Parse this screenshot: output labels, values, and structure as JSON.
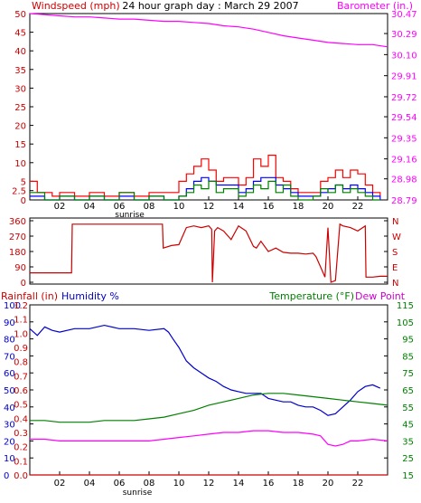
{
  "chart_data": [
    {
      "type": "line",
      "title": "24 hour graph day : March 29 2007",
      "left_axis_label": "Windspeed (mph)",
      "right_axis_label": "Barometer (in.)",
      "x_tick_labels": [
        "02",
        "04",
        "06",
        "08",
        "10",
        "12",
        "14",
        "16",
        "18",
        "20",
        "22"
      ],
      "x_range_hours": [
        0,
        24
      ],
      "annotation": "sunrise",
      "annotation_hour": 6.7,
      "left_ylim": [
        0,
        50
      ],
      "left_ticks": [
        "0",
        "2.5",
        "5",
        "10",
        "15",
        "20",
        "25",
        "30",
        "35",
        "40",
        "45",
        "50"
      ],
      "right_ylim": [
        28.79,
        30.47
      ],
      "right_ticks": [
        "28.79",
        "28.98",
        "29.16",
        "29.35",
        "29.54",
        "29.72",
        "29.91",
        "30.10",
        "30.29",
        "30.47"
      ],
      "grid": false,
      "colors": {
        "gust": "#ff0000",
        "wind_avg": "#0000ff",
        "wind_avg2": "#008000",
        "barometer": "#ff00ff"
      },
      "series": [
        {
          "role": "barometer",
          "axis": "right",
          "color": "#ff00ff",
          "x": [
            0,
            1,
            2,
            3,
            4,
            5,
            6,
            7,
            8,
            9,
            10,
            11,
            12,
            13,
            14,
            15,
            16,
            17,
            18,
            19,
            20,
            21,
            22,
            23,
            24
          ],
          "values": [
            30.47,
            30.46,
            30.45,
            30.44,
            30.44,
            30.43,
            30.42,
            30.42,
            30.41,
            30.4,
            30.4,
            30.39,
            30.38,
            30.36,
            30.35,
            30.33,
            30.3,
            30.27,
            30.25,
            30.23,
            30.21,
            30.2,
            30.19,
            30.19,
            30.17
          ]
        },
        {
          "role": "gust",
          "axis": "left",
          "color": "#ff0000",
          "x": [
            0,
            0.5,
            1,
            1.5,
            2,
            3,
            4,
            5,
            6,
            7,
            8,
            9,
            10,
            10.5,
            11,
            11.5,
            12,
            12.5,
            13,
            14,
            14.5,
            15,
            15.5,
            16,
            16.5,
            17,
            17.5,
            18,
            19,
            19.5,
            20,
            20.5,
            21,
            21.5,
            22,
            22.5,
            23,
            23.5
          ],
          "values": [
            5,
            2,
            2,
            1,
            2,
            1,
            2,
            1,
            2,
            1,
            2,
            2,
            5,
            7,
            9,
            11,
            8,
            5,
            6,
            4,
            6,
            11,
            9,
            12,
            6,
            5,
            3,
            2,
            2,
            5,
            6,
            8,
            6,
            8,
            7,
            4,
            2,
            1
          ]
        },
        {
          "role": "wind-avg",
          "axis": "left",
          "color": "#0000ff",
          "x": [
            0,
            1,
            2,
            3,
            4,
            5,
            6,
            7,
            8,
            9,
            10,
            10.5,
            11,
            11.5,
            12,
            12.5,
            13,
            14,
            14.5,
            15,
            15.5,
            16,
            16.5,
            17,
            17.5,
            18,
            19,
            19.5,
            20,
            20.5,
            21,
            21.5,
            22,
            22.5,
            23,
            23.5
          ],
          "values": [
            1,
            0,
            1,
            0,
            1,
            0,
            1,
            0,
            1,
            0,
            1,
            3,
            5,
            6,
            5,
            4,
            4,
            2,
            3,
            5,
            6,
            6,
            4,
            3,
            2,
            1,
            1,
            2,
            3,
            4,
            3,
            4,
            3,
            2,
            1,
            0
          ]
        },
        {
          "role": "wind-avg-2",
          "axis": "left",
          "color": "#008000",
          "x": [
            0,
            1,
            2,
            3,
            4,
            5,
            6,
            7,
            8,
            9,
            10,
            10.5,
            11,
            11.5,
            12,
            12.5,
            13,
            14,
            14.5,
            15,
            15.5,
            16,
            16.5,
            17,
            17.5,
            18,
            19,
            19.5,
            20,
            20.5,
            21,
            21.5,
            22,
            22.5,
            23,
            23.5
          ],
          "values": [
            2,
            0,
            1,
            0,
            1,
            0,
            2,
            0,
            1,
            0,
            1,
            2,
            4,
            3,
            5,
            2,
            3,
            1,
            2,
            4,
            3,
            5,
            2,
            4,
            1,
            0,
            1,
            3,
            2,
            4,
            2,
            3,
            2,
            1,
            0,
            0
          ]
        }
      ]
    },
    {
      "type": "line",
      "title": "",
      "left_ticks": [
        "0",
        "90",
        "180",
        "270",
        "360"
      ],
      "left_ylim": [
        0,
        360
      ],
      "right_ticks": [
        "N",
        "W",
        "S",
        "E",
        "N"
      ],
      "x_range_hours": [
        0,
        24
      ],
      "color": "#cc0000",
      "series": [
        {
          "role": "wind-direction",
          "axis": "left",
          "x": [
            0,
            1,
            2,
            2.8,
            2.85,
            3,
            4,
            5,
            6,
            7,
            8,
            8.9,
            8.95,
            9.5,
            10,
            10.5,
            11,
            11.5,
            12,
            12.2,
            12.25,
            12.4,
            12.6,
            13,
            13.5,
            14,
            14.5,
            15,
            15.2,
            15.5,
            16,
            16.5,
            17,
            17.5,
            18,
            18.5,
            19,
            19.2,
            19.5,
            19.8,
            20,
            20.2,
            20.5,
            20.8,
            21,
            21.5,
            22,
            22.5,
            22.55,
            23,
            23.5,
            24
          ],
          "values": [
            55,
            55,
            55,
            55,
            340,
            340,
            340,
            340,
            340,
            340,
            340,
            340,
            200,
            215,
            220,
            320,
            330,
            320,
            330,
            310,
            0,
            300,
            320,
            300,
            250,
            330,
            300,
            210,
            200,
            240,
            180,
            200,
            175,
            170,
            170,
            165,
            170,
            150,
            90,
            30,
            320,
            0,
            10,
            340,
            330,
            320,
            300,
            330,
            30,
            30,
            35,
            35
          ]
        }
      ]
    },
    {
      "type": "line",
      "title": "",
      "left_axis_label_rain": "Rainfall (in)",
      "left_axis_label_humidity": "Humidity %",
      "right_axis_label_temp": "Temperature (°F)",
      "right_axis_label_dew": "Dew Point",
      "x_tick_labels": [
        "02",
        "04",
        "06",
        "08",
        "10",
        "12",
        "14",
        "16",
        "18",
        "20",
        "22"
      ],
      "x_range_hours": [
        0,
        24
      ],
      "annotation": "sunrise",
      "annotation_hour": 6.7,
      "rain_ticks": [
        "0.0",
        "0.1",
        "0.2",
        "0.3",
        "0.4",
        "0.5",
        "0.6",
        "0.7",
        "0.8",
        "0.9",
        "1.0",
        "1.1",
        "1.2"
      ],
      "humidity_ticks": [
        "0",
        "10",
        "20",
        "30",
        "40",
        "50",
        "60",
        "70",
        "80",
        "90",
        "100"
      ],
      "humidity_ylim": [
        0,
        100
      ],
      "temp_ticks": [
        "15",
        "25",
        "35",
        "45",
        "55",
        "65",
        "75",
        "85",
        "95",
        "105",
        "115"
      ],
      "temp_ylim": [
        15,
        115
      ],
      "colors": {
        "humidity": "#0000cc",
        "temperature": "#008000",
        "dew_point": "#ff00ff",
        "rainfall": "#cc0000"
      },
      "series": [
        {
          "role": "humidity",
          "axis": "humidity",
          "color": "#0000cc",
          "x": [
            0,
            0.5,
            1,
            1.5,
            2,
            3,
            4,
            5,
            6,
            7,
            8,
            9,
            9.3,
            9.6,
            10,
            10.5,
            11,
            11.5,
            12,
            12.5,
            13,
            13.5,
            14,
            14.5,
            15,
            15.5,
            16,
            16.5,
            17,
            17.5,
            18,
            18.5,
            19,
            19.5,
            20,
            20.5,
            21,
            21.5,
            22,
            22.5,
            23,
            23.5
          ],
          "values": [
            86,
            82,
            87,
            85,
            84,
            86,
            86,
            88,
            86,
            86,
            85,
            86,
            84,
            80,
            75,
            67,
            63,
            60,
            57,
            55,
            52,
            50,
            49,
            48,
            48,
            48,
            45,
            44,
            43,
            43,
            41,
            40,
            40,
            38,
            35,
            36,
            40,
            44,
            49,
            52,
            53,
            51
          ]
        },
        {
          "role": "temperature",
          "axis": "temp",
          "color": "#008000",
          "x": [
            0,
            1,
            2,
            3,
            4,
            5,
            6,
            7,
            8,
            9,
            10,
            11,
            12,
            13,
            14,
            15,
            16,
            17,
            18,
            19,
            20,
            21,
            22,
            23,
            24
          ],
          "values": [
            47,
            47,
            46,
            46,
            46,
            47,
            47,
            47,
            48,
            49,
            51,
            53,
            56,
            58,
            60,
            62,
            63,
            63,
            62,
            61,
            60,
            59,
            58,
            57,
            56
          ]
        },
        {
          "role": "dew-point",
          "axis": "temp",
          "color": "#ff00ff",
          "x": [
            0,
            1,
            2,
            3,
            4,
            5,
            6,
            7,
            8,
            9,
            10,
            11,
            12,
            13,
            14,
            15,
            16,
            17,
            18,
            19,
            19.5,
            20,
            20.5,
            21,
            21.5,
            22,
            23,
            24
          ],
          "values": [
            36,
            36,
            35,
            35,
            35,
            35,
            35,
            35,
            35,
            36,
            37,
            38,
            39,
            40,
            40,
            41,
            41,
            40,
            40,
            39,
            38,
            33,
            32,
            33,
            35,
            35,
            36,
            35
          ]
        },
        {
          "role": "rainfall",
          "axis": "rain",
          "color": "#cc0000",
          "x": [
            0,
            24
          ],
          "values": [
            0.0,
            0.0
          ]
        }
      ]
    }
  ]
}
